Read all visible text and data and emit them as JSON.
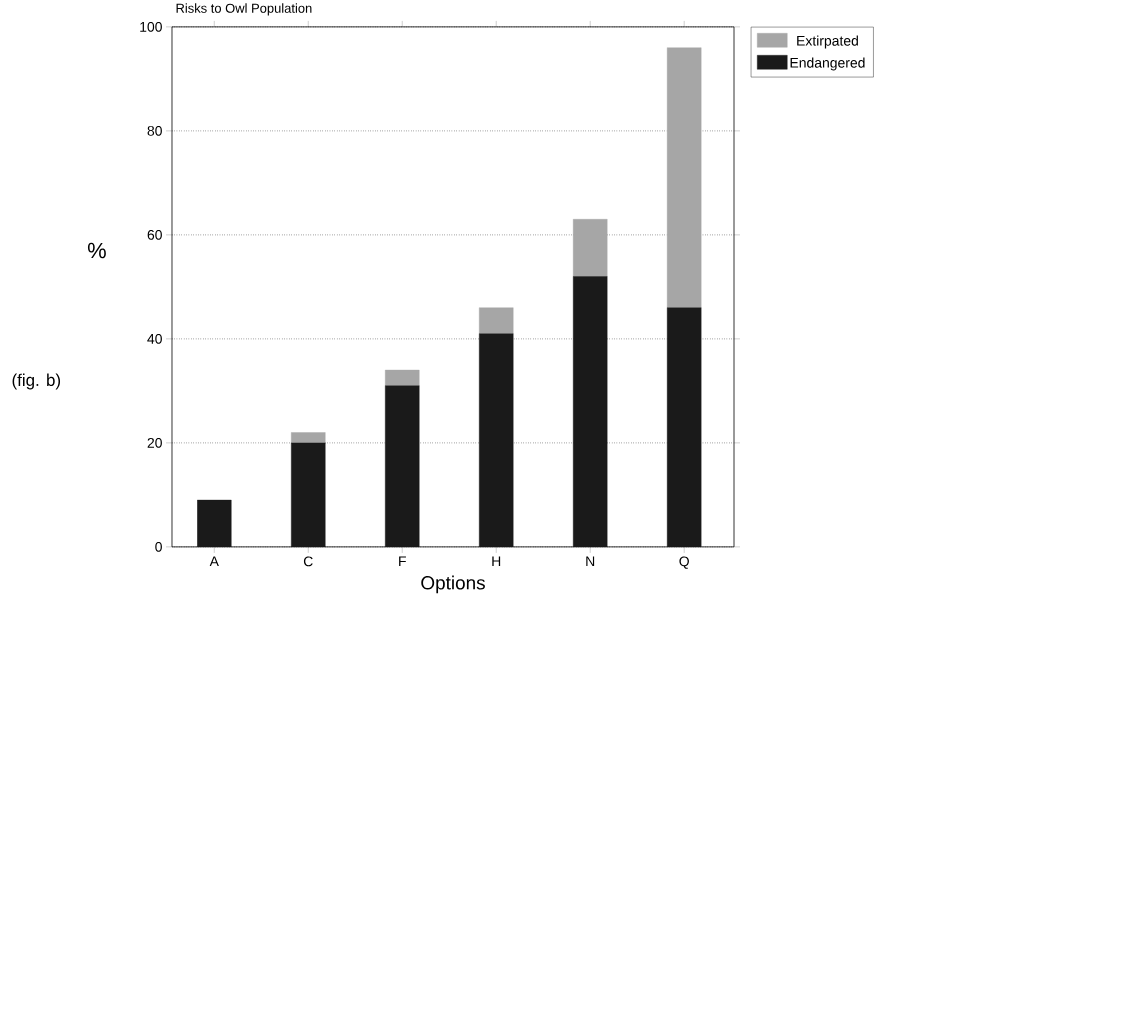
{
  "chart_data": {
    "type": "bar",
    "title": "Risks to Owl Population",
    "xlabel": "Options",
    "ylabel": "%",
    "annotations": [
      "(fig. b)"
    ],
    "categories": [
      "A",
      "C",
      "F",
      "H",
      "N",
      "Q"
    ],
    "stacked": true,
    "series": [
      {
        "name": "Endangered",
        "color": "#1a1a1a",
        "values": [
          9,
          20,
          31,
          41,
          52,
          46
        ]
      },
      {
        "name": "Extirpated",
        "color": "#a6a6a6",
        "values": [
          0,
          2,
          3,
          5,
          11,
          50
        ]
      }
    ],
    "ylim": [
      0,
      100
    ],
    "yticks": [
      0,
      20,
      40,
      60,
      80,
      100
    ],
    "grid": "y",
    "legend": "right"
  }
}
